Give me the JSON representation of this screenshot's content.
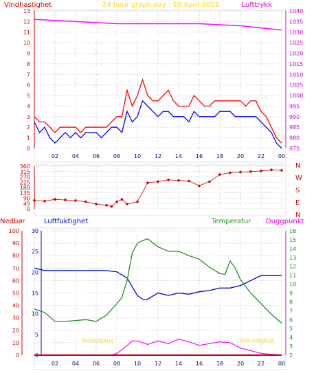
{
  "header": {
    "wind_label": "Vindhastighet",
    "title": "24 hour graph day : 20 April 2023",
    "pressure_label": "Lufttrykk"
  },
  "lower_header": {
    "rain_label": "Nedbør",
    "humidity_label": "Luftfuktighet",
    "temperature_label": "Temperatur",
    "dewpoint_label": "Duggpunkt"
  },
  "annotations": {
    "sunrise": "Soloppgang",
    "sunset": "Solnedgang"
  },
  "colors": {
    "frame": "#e0dfe3",
    "grid": "#c8c8c8",
    "axis_left": "#cc0000",
    "axis_right": "#cc00cc",
    "wind_gust": "#ff0000",
    "wind_avg": "#0000ff",
    "pressure": "#ff00ff",
    "direction": "#cc0000",
    "humidity": "#0000cc",
    "temperature": "#228b22",
    "dewpoint": "#ff00ff",
    "rain": "#cc0000",
    "sun": "#ffd700"
  },
  "chart_data": [
    {
      "type": "line",
      "title": "24 hour graph day : 20 April 2023",
      "x_ticks": [
        "02",
        "04",
        "06",
        "08",
        "10",
        "12",
        "14",
        "16",
        "18",
        "20",
        "22",
        "00"
      ],
      "y_left": {
        "label": "Vindhastighet",
        "range": [
          0,
          13
        ],
        "ticks": [
          0,
          1,
          2,
          3,
          4,
          5,
          6,
          7,
          8,
          9,
          10,
          11,
          12,
          13
        ]
      },
      "y_right": {
        "label": "Lufttrykk",
        "range": [
          975,
          1040
        ],
        "ticks": [
          975,
          980,
          985,
          990,
          995,
          1000,
          1005,
          1010,
          1015,
          1020,
          1025,
          1030,
          1035,
          1040
        ]
      },
      "series": [
        {
          "name": "Vindhastighet",
          "axis": "left",
          "x": [
            0,
            0.5,
            1,
            1.5,
            2,
            2.5,
            3,
            3.5,
            4,
            4.5,
            5,
            5.5,
            6,
            6.5,
            7,
            7.5,
            8,
            8.5,
            9,
            9.5,
            10,
            10.5,
            11,
            11.5,
            12,
            12.5,
            13,
            13.5,
            14,
            14.5,
            15,
            15.5,
            16,
            16.5,
            17,
            17.5,
            18,
            18.5,
            19,
            19.5,
            20,
            20.5,
            21,
            21.5,
            22,
            22.5,
            23,
            23.5,
            24
          ],
          "values": [
            2.5,
            1.5,
            2,
            1,
            0.5,
            1,
            1.5,
            1,
            1.5,
            1,
            1.5,
            1.5,
            1.5,
            1,
            1.5,
            2,
            2,
            1.5,
            3.5,
            2.5,
            3,
            4.5,
            4,
            3.5,
            3,
            3.5,
            3.5,
            3,
            3,
            3,
            2.5,
            3.5,
            3,
            3,
            3,
            3,
            3.5,
            3.5,
            3.5,
            3,
            3,
            3,
            3,
            3,
            2.5,
            2,
            1.5,
            0.5,
            0
          ]
        },
        {
          "name": "Vindkast",
          "axis": "left",
          "x": [
            0,
            0.5,
            1,
            1.5,
            2,
            2.5,
            3,
            3.5,
            4,
            4.5,
            5,
            5.5,
            6,
            6.5,
            7,
            7.5,
            8,
            8.5,
            9,
            9.5,
            10,
            10.5,
            11,
            11.5,
            12,
            12.5,
            13,
            13.5,
            14,
            14.5,
            15,
            15.5,
            16,
            16.5,
            17,
            17.5,
            18,
            18.5,
            19,
            19.5,
            20,
            20.5,
            21,
            21.5,
            22,
            22.5,
            23,
            23.5,
            24
          ],
          "values": [
            3,
            2.5,
            2.5,
            2,
            1.5,
            2,
            2,
            2,
            2,
            1.5,
            2,
            2,
            2,
            2,
            2,
            2.5,
            3,
            3,
            5.5,
            4,
            5,
            6.5,
            5,
            4.5,
            4.5,
            5,
            5.5,
            4.5,
            4,
            4,
            4,
            5,
            4.5,
            4,
            4,
            4.5,
            4.5,
            4.5,
            4.5,
            4.5,
            4.5,
            4,
            4.5,
            4.5,
            3.5,
            3,
            2,
            1,
            0.5
          ]
        },
        {
          "name": "Lufttrykk",
          "axis": "right",
          "x": [
            0,
            2,
            4,
            6,
            8,
            10,
            12,
            14,
            16,
            18,
            20,
            22,
            24
          ],
          "values": [
            1036,
            1035.5,
            1035,
            1034.5,
            1034,
            1034,
            1034,
            1034,
            1034,
            1033.5,
            1033,
            1032,
            1031
          ]
        }
      ]
    },
    {
      "type": "scatter",
      "x_ticks": [
        "02",
        "04",
        "06",
        "08",
        "10",
        "12",
        "14",
        "16",
        "18",
        "20",
        "22",
        "00"
      ],
      "y_left": {
        "range": [
          0,
          360
        ],
        "ticks": [
          0,
          45,
          90,
          135,
          180,
          225,
          270,
          315,
          360
        ]
      },
      "y_right": {
        "labels": [
          "N",
          "W",
          "S",
          "E",
          "N"
        ]
      },
      "series": [
        {
          "name": "Vindretning",
          "x": [
            0,
            1,
            2,
            3,
            4,
            5,
            6,
            7,
            7.5,
            8,
            8.5,
            9,
            10,
            11,
            12,
            13,
            14,
            15,
            16,
            17,
            18,
            19,
            20,
            21,
            22,
            23,
            24
          ],
          "values": [
            70,
            65,
            80,
            75,
            70,
            60,
            40,
            30,
            20,
            60,
            80,
            40,
            60,
            220,
            230,
            245,
            240,
            235,
            195,
            230,
            290,
            305,
            310,
            315,
            320,
            330,
            325
          ]
        }
      ]
    },
    {
      "type": "line",
      "x_ticks": [
        "02",
        "04",
        "06",
        "08",
        "10",
        "12",
        "14",
        "16",
        "18",
        "20",
        "22",
        "00"
      ],
      "y_rain": {
        "label": "Nedbør",
        "range": [
          0,
          100
        ],
        "ticks": [
          0,
          10,
          20,
          30,
          40,
          50,
          60,
          70,
          80,
          90,
          100
        ]
      },
      "y_humidity": {
        "label": "Luftfuktighet",
        "range": [
          0,
          30
        ],
        "ticks": [
          0,
          5,
          10,
          15,
          20,
          25,
          30
        ]
      },
      "y_right": {
        "label": "Duggpunkt",
        "range": [
          2,
          16
        ],
        "ticks": [
          2,
          3,
          4,
          5,
          6,
          7,
          8,
          9,
          10,
          11,
          12,
          13,
          14,
          15,
          16
        ]
      },
      "series": [
        {
          "name": "Luftfuktighet",
          "axis": "y_rain",
          "x": [
            0,
            1,
            2,
            3,
            4,
            5,
            6,
            7,
            8,
            9,
            9.5,
            10,
            10.5,
            11,
            12,
            13,
            14,
            15,
            16,
            17,
            18,
            19,
            20,
            21,
            22,
            23,
            24
          ],
          "values": [
            70,
            68,
            68,
            68,
            68,
            68,
            68,
            68,
            67,
            62,
            55,
            48,
            45,
            45,
            50,
            48,
            50,
            49,
            51,
            52,
            54,
            54,
            56,
            60,
            64,
            64,
            64
          ]
        },
        {
          "name": "Temperatur",
          "axis": "y_right",
          "x": [
            0,
            1,
            2,
            3,
            4,
            5,
            6,
            7,
            8,
            8.5,
            9,
            9.5,
            10,
            10.5,
            11,
            12,
            13,
            14,
            15,
            16,
            17,
            18,
            18.5,
            19,
            19.5,
            20,
            21,
            22,
            23,
            24
          ],
          "values": [
            7.2,
            6.8,
            5.8,
            5.8,
            5.9,
            6,
            5.8,
            6.5,
            7.8,
            8.5,
            10.4,
            13.5,
            14.6,
            14.9,
            15.1,
            14.2,
            13.7,
            13.7,
            13.2,
            12.8,
            11.9,
            11.2,
            11.1,
            12.6,
            11.8,
            10.5,
            9,
            7.8,
            6.6,
            5.6
          ]
        },
        {
          "name": "Duggpunkt",
          "axis": "y_right",
          "x": [
            0,
            1,
            2,
            3,
            4,
            5,
            6,
            7,
            7.5,
            8,
            8.5,
            9,
            9.5,
            10,
            11,
            12,
            13,
            14,
            15,
            16,
            17,
            18,
            19,
            20,
            21,
            22,
            23,
            24
          ],
          "values": [
            2,
            2,
            2,
            2,
            2,
            2,
            2,
            2,
            2,
            2.2,
            2.6,
            3.1,
            3.6,
            3.6,
            3.2,
            3.6,
            3.3,
            3.8,
            3.5,
            3.1,
            3.3,
            3.5,
            3.4,
            2.8,
            2.5,
            2.2,
            2.1,
            2
          ]
        },
        {
          "name": "Nedbør",
          "axis": "y_rain",
          "x": [
            0,
            24
          ],
          "values": [
            0,
            0
          ]
        }
      ]
    }
  ]
}
